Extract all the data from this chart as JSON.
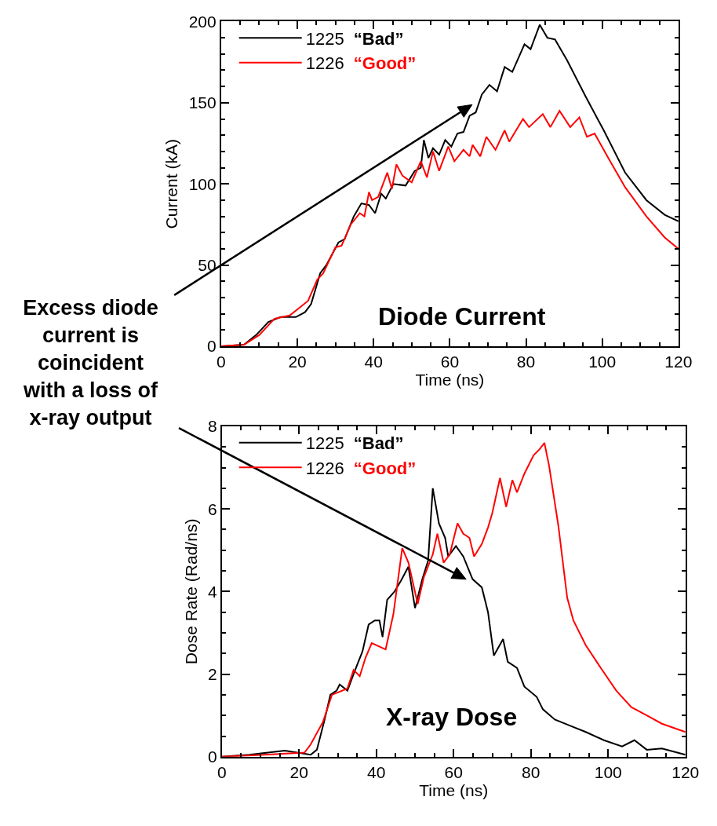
{
  "chart_data": [
    {
      "type": "line",
      "xlabel": "Time (ns)",
      "ylabel": "Current (kA)",
      "xlim": [
        0,
        120
      ],
      "ylim": [
        0,
        200
      ],
      "xticks": [
        0,
        20,
        40,
        60,
        80,
        100,
        120
      ],
      "yticks": [
        0,
        50,
        100,
        150,
        200
      ],
      "legend": "top left",
      "marker": "none",
      "line_style": "solid",
      "annotations": [
        "Diode Current",
        "Excess diode current is coincident with a loss of x-ray output"
      ],
      "series": [
        {
          "name": "1225 “Bad”",
          "color": "#000000",
          "x": [
            0,
            6,
            9.2,
            12.4,
            15.6,
            19.6,
            22,
            23.6,
            26,
            27.6,
            30.8,
            32.4,
            34.8,
            36.8,
            38.8,
            40.4,
            42,
            43.2,
            45.2,
            48.4,
            50.8,
            52.4,
            53.2,
            54.4,
            55.6,
            57.2,
            58.8,
            60.4,
            62,
            63.6,
            65.2,
            66.8,
            68.4,
            70.4,
            72.4,
            74.4,
            76.4,
            79.6,
            81.2,
            83.6,
            85.6,
            87.6,
            90.8,
            95.6,
            100.4,
            106,
            111.6,
            116.4,
            120
          ],
          "values": [
            0,
            1,
            7,
            15,
            18,
            18,
            21,
            26,
            45,
            50,
            64,
            66,
            80,
            88,
            87,
            82,
            94,
            91,
            100,
            99,
            108,
            110,
            127,
            116,
            122,
            118,
            127,
            123,
            131,
            132,
            142,
            144,
            155,
            161,
            157,
            172,
            169,
            186,
            183,
            198,
            190,
            189,
            176,
            154,
            133,
            107,
            90,
            81,
            77
          ]
        },
        {
          "name": "1226 “Good”",
          "color": "#ff0000",
          "x": [
            0,
            6,
            10,
            14,
            18,
            22.8,
            25.2,
            26.8,
            30,
            31.6,
            34,
            36.4,
            37.6,
            38.8,
            39.6,
            41.2,
            43.6,
            44.8,
            46,
            47.6,
            50,
            52.4,
            54,
            55.6,
            57.2,
            59.6,
            61.2,
            63.6,
            65.2,
            66,
            68,
            69.6,
            72,
            74.4,
            75.6,
            79.2,
            80.8,
            84.4,
            86.4,
            88.8,
            91.6,
            94,
            96,
            98,
            101.6,
            106,
            111.6,
            116.4,
            120
          ],
          "values": [
            0,
            1,
            7,
            17,
            19,
            28,
            41,
            45,
            61,
            62,
            75,
            82,
            80,
            95,
            90,
            92,
            107,
            97,
            112,
            105,
            101,
            114,
            104,
            120,
            108,
            123,
            114,
            121,
            117,
            124,
            117,
            129,
            121,
            133,
            126,
            140,
            135,
            143,
            135,
            145,
            135,
            141,
            129,
            131,
            116,
            98,
            80,
            67,
            60
          ]
        }
      ]
    },
    {
      "type": "line",
      "xlabel": "Time (ns)",
      "ylabel": "Dose Rate (Rad/ns)",
      "xlim": [
        0,
        120
      ],
      "ylim": [
        0,
        8
      ],
      "xticks": [
        0,
        20,
        40,
        60,
        80,
        100,
        120
      ],
      "yticks": [
        0,
        2,
        4,
        6,
        8
      ],
      "legend": "top left",
      "marker": "none",
      "line_style": "solid",
      "annotations": [
        "X-ray Dose"
      ],
      "series": [
        {
          "name": "1225 “Bad”",
          "color": "#000000",
          "x": [
            0,
            7.1,
            16.3,
            23,
            24.6,
            26.6,
            28.1,
            29.7,
            30.5,
            32.5,
            34.5,
            36.4,
            38,
            39.6,
            40.8,
            41.6,
            42.8,
            44.7,
            46.3,
            48.3,
            50,
            51.9,
            53.4,
            54.6,
            56.2,
            57.8,
            58.6,
            60.6,
            62.5,
            64.9,
            67.3,
            68.9,
            70.4,
            72.8,
            74,
            76.4,
            78.3,
            81.5,
            83.1,
            86.2,
            90.2,
            94.2,
            98.9,
            103.6,
            106.8,
            110,
            113.9,
            120
          ],
          "values": [
            0,
            0.05,
            0.15,
            0.05,
            0.17,
            0.9,
            1.5,
            1.6,
            1.75,
            1.6,
            2.1,
            2.55,
            3.2,
            3.3,
            3.3,
            2.9,
            3.8,
            4.0,
            4.25,
            4.6,
            3.6,
            4.3,
            4.75,
            6.5,
            5.65,
            5.3,
            4.85,
            5.1,
            4.85,
            4.3,
            4.1,
            3.5,
            2.45,
            2.85,
            2.3,
            2.15,
            1.7,
            1.45,
            1.15,
            0.9,
            0.75,
            0.6,
            0.4,
            0.25,
            0.4,
            0.17,
            0.2,
            0.05
          ]
        },
        {
          "name": "1226 “Good”",
          "color": "#ff0000",
          "x": [
            0,
            11.1,
            21.4,
            23,
            26.2,
            28.5,
            32.5,
            34.1,
            35.7,
            37.2,
            38.8,
            42.4,
            44.4,
            46.7,
            48.3,
            50.7,
            52.3,
            54.6,
            55.8,
            57.4,
            59,
            61,
            62.5,
            64.1,
            65.3,
            67.3,
            68.9,
            70,
            72,
            73.6,
            75.2,
            76.4,
            78.3,
            80.7,
            82.3,
            83.5,
            84.7,
            87.1,
            89.4,
            91,
            94.2,
            98.1,
            102.1,
            106,
            110,
            113.9,
            120
          ],
          "values": [
            0,
            0.05,
            0.1,
            0.3,
            0.85,
            1.5,
            1.65,
            2.1,
            1.95,
            2.4,
            2.75,
            2.6,
            3.45,
            5.05,
            4.7,
            3.7,
            4.35,
            4.9,
            5.4,
            4.7,
            4.9,
            5.65,
            5.4,
            5.3,
            4.85,
            5.15,
            5.55,
            5.9,
            6.75,
            6.05,
            6.7,
            6.4,
            6.85,
            7.3,
            7.45,
            7.6,
            7.05,
            5.6,
            3.85,
            3.3,
            2.7,
            2.15,
            1.6,
            1.2,
            1.0,
            0.8,
            0.6
          ]
        }
      ]
    }
  ]
}
